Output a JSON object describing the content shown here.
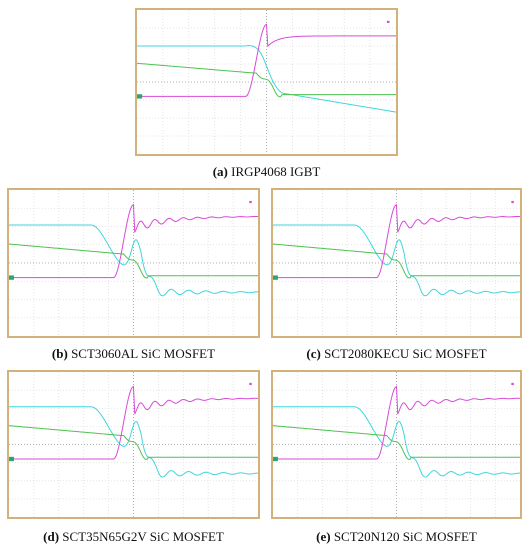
{
  "panels": [
    {
      "label": "(a)",
      "text": "IRGP4068 IGBT"
    },
    {
      "label": "(b)",
      "text": "SCT3060AL SiC MOSFET"
    },
    {
      "label": "(c)",
      "text": "SCT2080KECU SiC MOSFET"
    },
    {
      "label": "(d)",
      "text": "SCT35N65G2V SiC MOSFET"
    },
    {
      "label": "(e)",
      "text": "SCT20N120 SiC MOSFET"
    }
  ]
}
